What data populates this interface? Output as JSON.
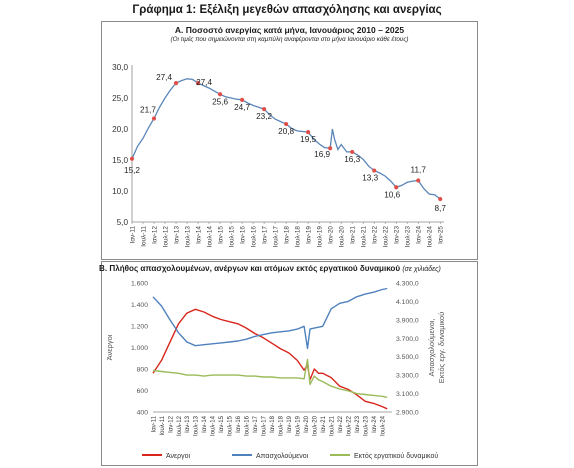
{
  "page_title": "Γράφημα 1: Εξέλιξη μεγεθών απασχόλησης και ανεργίας",
  "chart_data": [
    {
      "type": "line",
      "title": "A. Ποσοστό ανεργίας κατά μήνα, Ιανουάριος 2010 – 2025",
      "subtitle": "(Οι τιμές που σημειώνονται στη καμπύλη αναφέρονται στο μήνα Ιανουάριο κάθε έτους)",
      "ylim": [
        5,
        30
      ],
      "yticks": [
        "5,0",
        "10,0",
        "15,0",
        "20,0",
        "25,0",
        "30,0"
      ],
      "xlim": [
        2011,
        2025.08
      ],
      "xticks": [
        "Ιαν-11",
        "Ιουλ-11",
        "Ιαν-12",
        "Ιουλ-12",
        "Ιαν-13",
        "Ιουλ-13",
        "Ιαν-14",
        "Ιουλ-14",
        "Ιαν-15",
        "Ιουλ-15",
        "Ιαν-16",
        "Ιουλ-16",
        "Ιαν-17",
        "Ιουλ-17",
        "Ιαν-18",
        "Ιουλ-18",
        "Ιαν-19",
        "Ιουλ-19",
        "Ιαν-20",
        "Ιουλ-20",
        "Ιαν-21",
        "Ιουλ-21",
        "Ιαν-22",
        "Ιουλ-22",
        "Ιαν-23",
        "Ιουλ-23",
        "Ιαν-24",
        "Ιουλ-24",
        "Ιαν-25"
      ],
      "grid": false,
      "series": [
        {
          "color": "#5b86b8",
          "x": [
            2011,
            2011.25,
            2011.5,
            2011.75,
            2012,
            2012.25,
            2012.5,
            2012.75,
            2013,
            2013.25,
            2013.5,
            2013.75,
            2014,
            2014.25,
            2014.5,
            2014.75,
            2015,
            2015.25,
            2015.5,
            2015.75,
            2016,
            2016.25,
            2016.5,
            2016.75,
            2017,
            2017.25,
            2017.5,
            2017.75,
            2018,
            2018.25,
            2018.5,
            2018.75,
            2019,
            2019.25,
            2019.5,
            2019.75,
            2020,
            2020.1,
            2020.2,
            2020.35,
            2020.5,
            2020.75,
            2021,
            2021.25,
            2021.5,
            2021.75,
            2022,
            2022.25,
            2022.5,
            2022.75,
            2023,
            2023.25,
            2023.5,
            2023.75,
            2024,
            2024.25,
            2024.5,
            2024.75,
            2025
          ],
          "y": [
            15.2,
            17.2,
            18.5,
            20.2,
            21.7,
            23.5,
            25.0,
            26.3,
            27.4,
            27.8,
            28.1,
            28.0,
            27.4,
            27.0,
            26.6,
            26.1,
            25.6,
            25.2,
            25.0,
            24.8,
            24.7,
            24.2,
            23.8,
            23.5,
            23.2,
            22.3,
            21.6,
            21.2,
            20.8,
            20.1,
            19.7,
            19.6,
            19.5,
            18.4,
            17.6,
            17.0,
            16.9,
            20.0,
            18.3,
            16.7,
            17.5,
            16.3,
            16.3,
            15.8,
            15.1,
            14.0,
            13.3,
            12.9,
            12.4,
            11.6,
            10.6,
            10.9,
            11.4,
            11.6,
            11.7,
            10.4,
            9.5,
            9.4,
            8.7
          ]
        }
      ],
      "markers": {
        "color": "#e0504a",
        "x": [
          2011,
          2012,
          2013,
          2014,
          2015,
          2016,
          2017,
          2018,
          2019,
          2020,
          2021,
          2022,
          2023,
          2024,
          2025
        ],
        "y": [
          15.2,
          21.7,
          27.4,
          27.4,
          25.6,
          24.7,
          23.2,
          20.8,
          19.5,
          16.9,
          16.3,
          13.3,
          10.6,
          11.7,
          8.7
        ],
        "labels": [
          "15,2",
          "21,7",
          "27,4",
          "27,4",
          "25,6",
          "24,7",
          "23,2",
          "20,8",
          "19,5",
          "16,9",
          "16,3",
          "13,3",
          "10,6",
          "11,7",
          "8,7"
        ]
      }
    },
    {
      "type": "line",
      "title": "B. Πλήθος απασχολουμένων, ανέργων και ατόμων εκτός εργατικού δυναμικού",
      "title_note": "(σε χιλιάδες)",
      "ylabel": "Άνεργοι",
      "y2label": "Απασχολούμενοι, Εκτός εργ. δυναμικού",
      "ylim": [
        400,
        1600
      ],
      "yticks": [
        "400",
        "600",
        "800",
        "1.000",
        "1.200",
        "1.400",
        "1.600"
      ],
      "y2lim": [
        2900,
        4300
      ],
      "y2ticks": [
        "2.900,0",
        "3.100,0",
        "3.300,0",
        "3.500,0",
        "3.700,0",
        "3.900,0",
        "4.100,0",
        "4.300,0"
      ],
      "xlim": [
        2011,
        2025.08
      ],
      "xticks": [
        "Ιαν-11",
        "Ιουλ-11",
        "Ιαν-12",
        "Ιουλ-12",
        "Ιαν-13",
        "Ιουλ-13",
        "Ιαν-14",
        "Ιουλ-14",
        "Ιαν-15",
        "Ιουλ-15",
        "Ιαν-16",
        "Ιουλ-16",
        "Ιαν-17",
        "Ιουλ-17",
        "Ιαν-18",
        "Ιουλ-18",
        "Ιαν-19",
        "Ιουλ-19",
        "Ιαν-20",
        "Ιουλ-20",
        "Ιαν-21",
        "Ιουλ-21",
        "Ιαν-22",
        "Ιουλ-22",
        "Ιαν-23",
        "Ιουλ-23",
        "Ιαν-24",
        "Ιουλ-24"
      ],
      "legend": "bottom",
      "series": [
        {
          "name": "Άνεργοι",
          "axis": "left",
          "color": "#d9261c",
          "x": [
            2011,
            2011.5,
            2012,
            2012.5,
            2013,
            2013.5,
            2014,
            2014.5,
            2015,
            2015.5,
            2016,
            2016.5,
            2017,
            2017.5,
            2018,
            2018.5,
            2019,
            2019.5,
            2019.9,
            2020.1,
            2020.25,
            2020.5,
            2020.75,
            2021,
            2021.5,
            2022,
            2022.5,
            2023,
            2023.5,
            2024,
            2024.5,
            2024.8
          ],
          "y": [
            760,
            880,
            1050,
            1220,
            1320,
            1355,
            1330,
            1290,
            1260,
            1240,
            1220,
            1180,
            1130,
            1090,
            1040,
            990,
            950,
            880,
            790,
            840,
            700,
            800,
            760,
            760,
            720,
            640,
            610,
            560,
            500,
            480,
            450,
            430
          ]
        },
        {
          "name": "Απασχολούμενοι",
          "axis": "right",
          "color": "#4f81bd",
          "x": [
            2011,
            2011.5,
            2012,
            2012.5,
            2013,
            2013.5,
            2014,
            2014.5,
            2015,
            2015.5,
            2016,
            2016.5,
            2017,
            2017.5,
            2018,
            2018.5,
            2019,
            2019.5,
            2019.9,
            2020.1,
            2020.25,
            2020.5,
            2020.75,
            2021,
            2021.5,
            2022,
            2022.5,
            2023,
            2023.5,
            2024,
            2024.5,
            2024.8
          ],
          "y": [
            4150,
            4050,
            3900,
            3760,
            3660,
            3620,
            3630,
            3640,
            3650,
            3660,
            3670,
            3690,
            3720,
            3740,
            3760,
            3770,
            3780,
            3800,
            3830,
            3590,
            3800,
            3810,
            3820,
            3830,
            4020,
            4080,
            4100,
            4150,
            4180,
            4200,
            4230,
            4240
          ]
        },
        {
          "name": "Εκτός εργατικού δυναμικού",
          "axis": "right",
          "color": "#9bbb59",
          "x": [
            2011,
            2011.5,
            2012,
            2012.5,
            2013,
            2013.5,
            2014,
            2014.5,
            2015,
            2015.5,
            2016,
            2016.5,
            2017,
            2017.5,
            2018,
            2018.5,
            2019,
            2019.5,
            2019.9,
            2020.1,
            2020.25,
            2020.5,
            2020.75,
            2021,
            2021.5,
            2022,
            2022.5,
            2023,
            2023.5,
            2024,
            2024.5,
            2024.8
          ],
          "y": [
            3350,
            3340,
            3330,
            3320,
            3300,
            3300,
            3290,
            3300,
            3300,
            3300,
            3300,
            3290,
            3290,
            3280,
            3280,
            3270,
            3270,
            3270,
            3260,
            3470,
            3200,
            3290,
            3250,
            3230,
            3180,
            3150,
            3130,
            3100,
            3090,
            3080,
            3070,
            3060
          ]
        }
      ]
    }
  ]
}
